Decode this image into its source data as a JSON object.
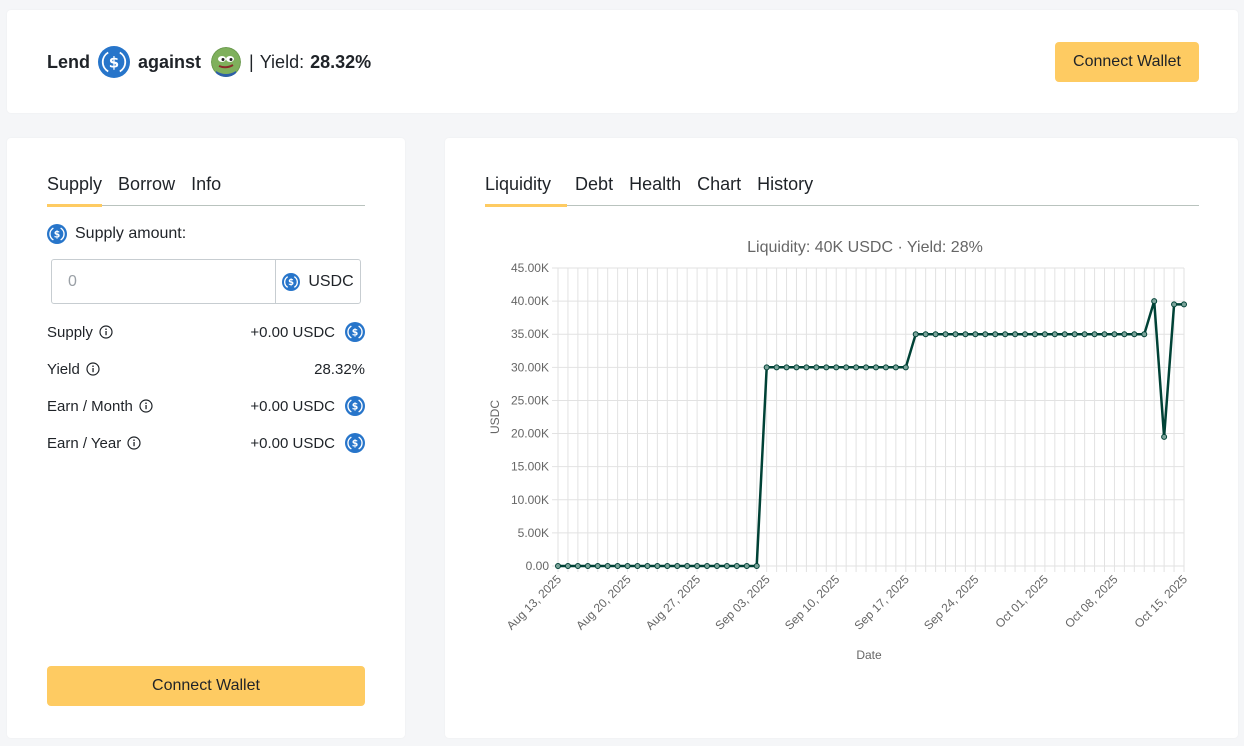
{
  "header": {
    "lend": "Lend",
    "against": "against",
    "separator": "|",
    "yield_label": "Yield:",
    "yield_value": "28.32%",
    "connect": "Connect Wallet"
  },
  "left": {
    "tabs": [
      "Supply",
      "Borrow",
      "Info"
    ],
    "supply_amount_label": "Supply amount:",
    "input_placeholder": "0",
    "input_unit": "USDC",
    "rows": [
      {
        "label": "Supply",
        "value": "+0.00 USDC"
      },
      {
        "label": "Yield",
        "value": "28.32%"
      },
      {
        "label": "Earn / Month",
        "value": "+0.00 USDC"
      },
      {
        "label": "Earn / Year",
        "value": "+0.00 USDC"
      }
    ],
    "connect": "Connect Wallet"
  },
  "right": {
    "tabs": [
      "Liquidity",
      "Debt",
      "Health",
      "Chart",
      "History"
    ]
  },
  "colors": {
    "accent": "#fecb62",
    "usdc_blue": "#2775ca",
    "line": "#004236"
  },
  "chart_data": {
    "type": "line",
    "title": "Liquidity: 40K USDC · Yield: 28%",
    "xlabel": "Date",
    "ylabel": "USDC",
    "ylim": [
      0,
      45000
    ],
    "yticks": [
      "0.00",
      "5.00K",
      "10.00K",
      "15.00K",
      "20.00K",
      "25.00K",
      "30.00K",
      "35.00K",
      "40.00K",
      "45.00K"
    ],
    "xticks": [
      "Aug 13, 2025",
      "Aug 20, 2025",
      "Aug 27, 2025",
      "Sep 03, 2025",
      "Sep 10, 2025",
      "Sep 17, 2025",
      "Sep 24, 2025",
      "Oct 01, 2025",
      "Oct 08, 2025",
      "Oct 15, 2025"
    ],
    "grid": true,
    "series": [
      {
        "name": "",
        "x": [
          "2025-08-13",
          "2025-08-14",
          "2025-08-15",
          "2025-08-16",
          "2025-08-17",
          "2025-08-18",
          "2025-08-19",
          "2025-08-20",
          "2025-08-21",
          "2025-08-22",
          "2025-08-23",
          "2025-08-24",
          "2025-08-25",
          "2025-08-26",
          "2025-08-27",
          "2025-08-28",
          "2025-08-29",
          "2025-08-30",
          "2025-08-31",
          "2025-09-01",
          "2025-09-02",
          "2025-09-03",
          "2025-09-04",
          "2025-09-05",
          "2025-09-06",
          "2025-09-07",
          "2025-09-08",
          "2025-09-09",
          "2025-09-10",
          "2025-09-11",
          "2025-09-12",
          "2025-09-13",
          "2025-09-14",
          "2025-09-15",
          "2025-09-16",
          "2025-09-17",
          "2025-09-18",
          "2025-09-19",
          "2025-09-20",
          "2025-09-21",
          "2025-09-22",
          "2025-09-23",
          "2025-09-24",
          "2025-09-25",
          "2025-09-26",
          "2025-09-27",
          "2025-09-28",
          "2025-09-29",
          "2025-09-30",
          "2025-10-01",
          "2025-10-02",
          "2025-10-03",
          "2025-10-04",
          "2025-10-05",
          "2025-10-06",
          "2025-10-07",
          "2025-10-08",
          "2025-10-09",
          "2025-10-10",
          "2025-10-11",
          "2025-10-12",
          "2025-10-13",
          "2025-10-14",
          "2025-10-15"
        ],
        "y": [
          0,
          0,
          0,
          0,
          0,
          0,
          0,
          0,
          0,
          0,
          0,
          0,
          0,
          0,
          0,
          0,
          0,
          0,
          0,
          0,
          0,
          30000,
          30000,
          30000,
          30000,
          30000,
          30000,
          30000,
          30000,
          30000,
          30000,
          30000,
          30000,
          30000,
          30000,
          30000,
          35000,
          35000,
          35000,
          35000,
          35000,
          35000,
          35000,
          35000,
          35000,
          35000,
          35000,
          35000,
          35000,
          35000,
          35000,
          35000,
          35000,
          35000,
          35000,
          35000,
          35000,
          35000,
          35000,
          35000,
          40000,
          19500,
          39500,
          39500
        ]
      }
    ]
  }
}
